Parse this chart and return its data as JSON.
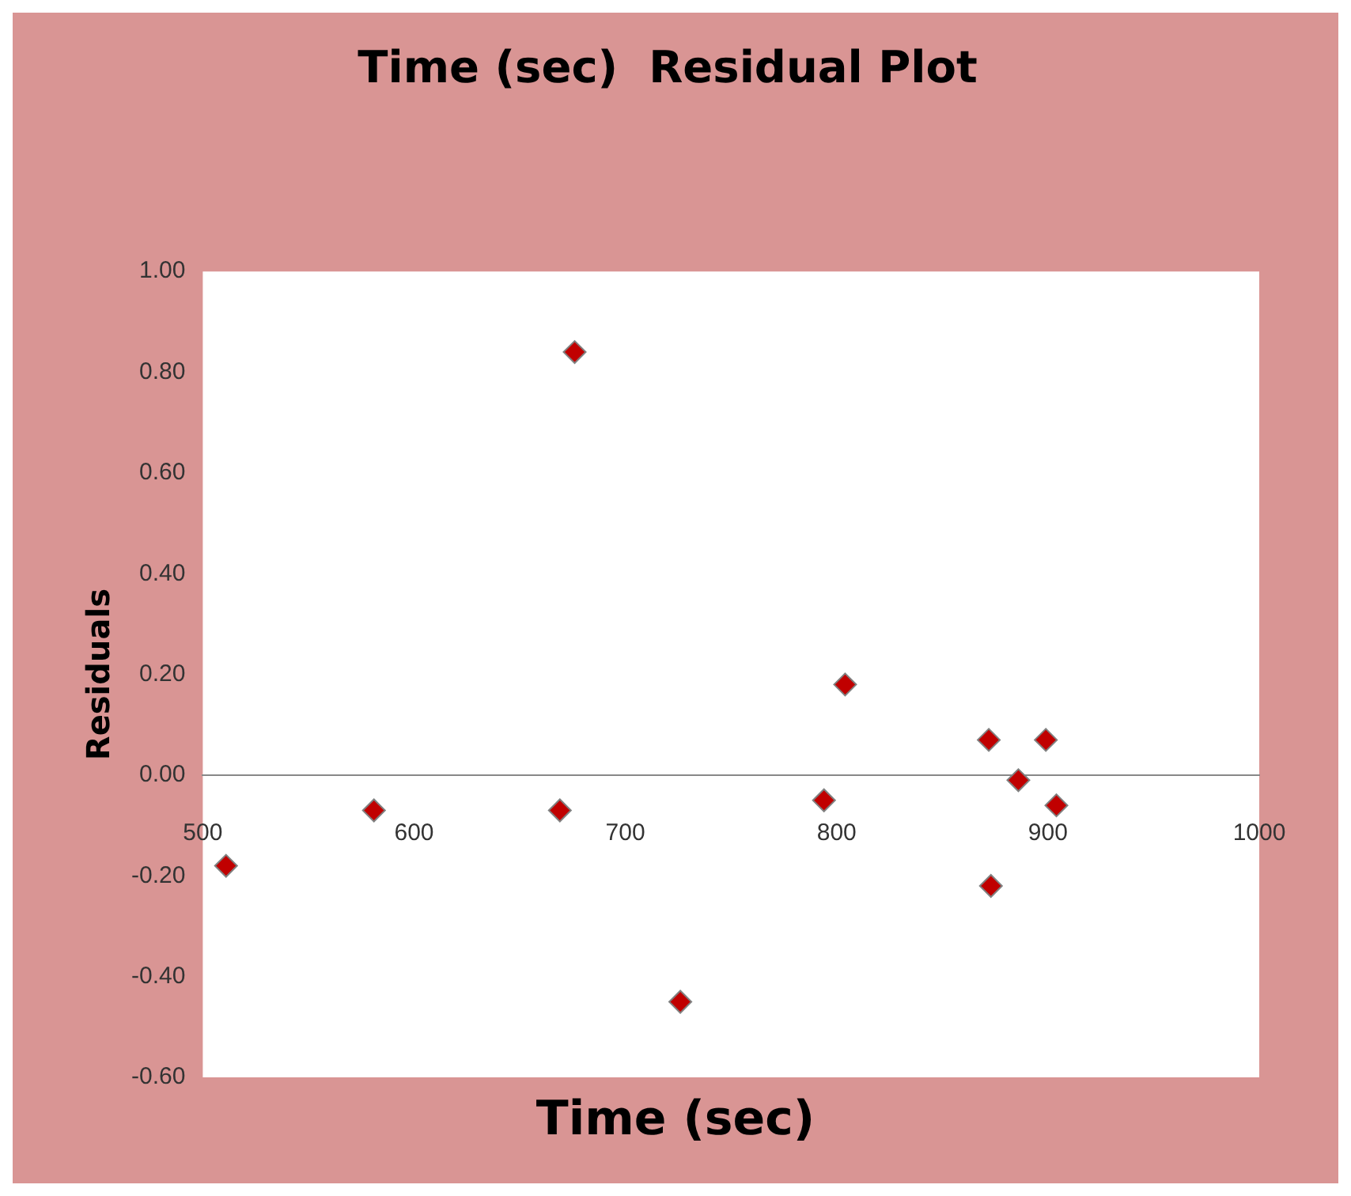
{
  "chart_data": {
    "type": "scatter",
    "title": "Time (sec)  Residual Plot",
    "xlabel": "Time (sec)",
    "ylabel": "Residuals",
    "x": [
      511,
      581,
      676,
      669,
      726,
      804,
      794,
      872,
      886,
      899,
      904,
      873
    ],
    "values": [
      -0.18,
      -0.07,
      0.84,
      -0.07,
      -0.45,
      0.18,
      -0.05,
      0.07,
      -0.01,
      0.07,
      -0.06,
      -0.22
    ],
    "color": "#c00000",
    "marker": "diamond",
    "grid": false,
    "legend": false,
    "xlim": [
      500,
      1000
    ],
    "xticks": [
      500,
      600,
      700,
      800,
      900,
      1000
    ],
    "ylim": [
      -0.6,
      1.0
    ],
    "yticks": [
      {
        "value": -0.6,
        "label": "-0.60"
      },
      {
        "value": -0.4,
        "label": "-0.40"
      },
      {
        "value": -0.2,
        "label": "-0.20"
      },
      {
        "value": 0,
        "label": "0.00"
      },
      {
        "value": 0.2,
        "label": "0.20"
      },
      {
        "value": 0.4,
        "label": "0.40"
      },
      {
        "value": 0.6,
        "label": "0.60"
      },
      {
        "value": 0.8,
        "label": "0.80"
      },
      {
        "value": 1.0,
        "label": "1.00"
      }
    ]
  }
}
